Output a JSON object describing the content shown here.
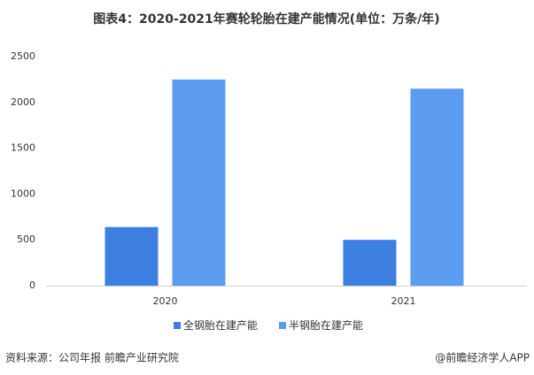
{
  "chart_data": {
    "type": "bar",
    "title": "图表4：2020-2021年赛轮轮胎在建产能情况(单位：万条/年)",
    "categories": [
      "2020",
      "2021"
    ],
    "series": [
      {
        "name": "全钢胎在建产能",
        "color": "#3d7fe0",
        "values": [
          640,
          500
        ]
      },
      {
        "name": "半钢胎在建产能",
        "color": "#5b9cf0",
        "values": [
          2250,
          2150
        ]
      }
    ],
    "ylim": [
      0,
      2500
    ],
    "yticks": [
      0,
      500,
      1000,
      1500,
      2000,
      2500
    ],
    "grid": false,
    "legend": "bottom",
    "source": "资料来源：公司年报 前瞻产业研究院",
    "brand": "@前瞻经济学人APP"
  }
}
